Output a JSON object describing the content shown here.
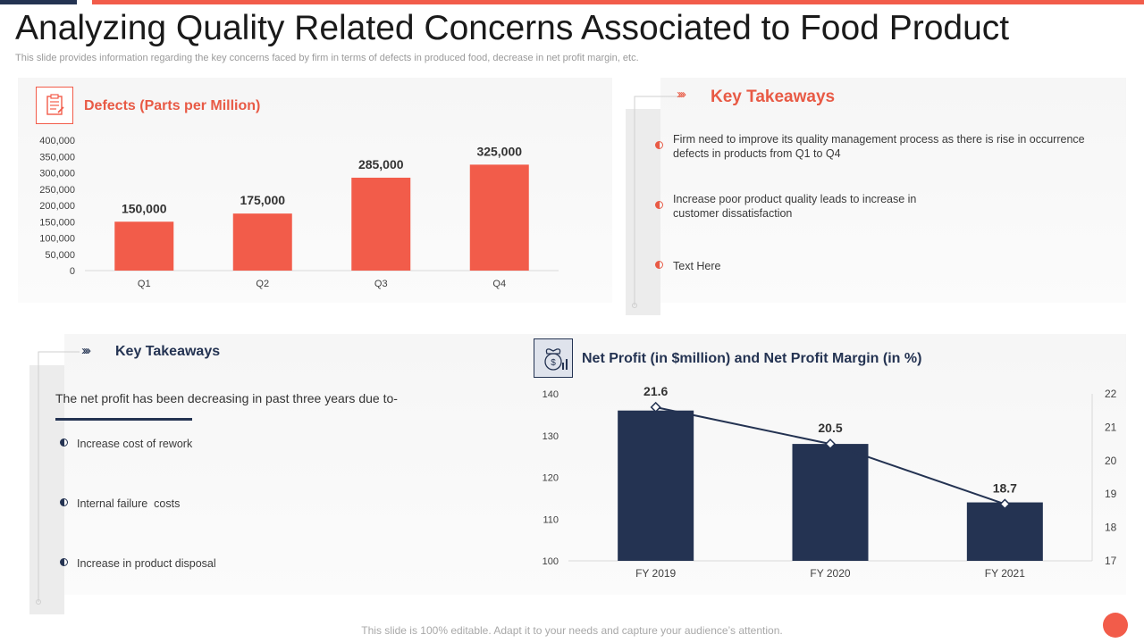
{
  "title": "Analyzing Quality Related Concerns Associated to Food Product",
  "subtitle": "This slide provides information regarding the key concerns faced by firm in terms of defects in produced food, decrease in net profit margin, etc.",
  "defects_section": {
    "title": "Defects (Parts per Million)",
    "icon": "clipboard-checklist-icon"
  },
  "key_takeaways_top": {
    "title": "Key Takeaways",
    "items": [
      "Firm need to improve  its quality management  process as there is rise in occurrence defects in products from Q1 to Q4",
      "Increase poor  product quality leads to increase in customer dissatisfaction",
      "Text Here"
    ]
  },
  "key_takeaways_bottom": {
    "title": "Key Takeaways",
    "intro": "The net profit has been decreasing in past three years due to-",
    "items": [
      "Increase cost of rework",
      "Internal failure  costs",
      "Increase in product disposal"
    ]
  },
  "profit_section": {
    "title": "Net Profit (in $million) and Net Profit Margin (in %)",
    "icon": "money-bag-growth-icon"
  },
  "footer": "This slide is 100% editable. Adapt it to your needs and capture your audience’s attention.",
  "colors": {
    "accent_red": "#f25c4a",
    "navy": "#243352"
  },
  "chart_data": [
    {
      "type": "bar",
      "title": "Defects (Parts per Million)",
      "categories": [
        "Q1",
        "Q2",
        "Q3",
        "Q4"
      ],
      "values": [
        150000,
        175000,
        285000,
        325000
      ],
      "value_labels": [
        "150,000",
        "175,000",
        "285,000",
        "325,000"
      ],
      "yticks": [
        "0",
        "50,000",
        "100,000",
        "150,000",
        "200,000",
        "250,000",
        "300,000",
        "350,000",
        "400,000"
      ],
      "ylim": [
        0,
        400000
      ],
      "color": "#f25c4a"
    },
    {
      "type": "bar+line",
      "title": "Net Profit (in $million) and Net Profit Margin (in %)",
      "categories": [
        "FY 2019",
        "FY 2020",
        "FY 2021"
      ],
      "bars": {
        "name": "Net Profit",
        "values": [
          136,
          128,
          114
        ],
        "ylim": [
          100,
          140
        ],
        "yticks": [
          "100",
          "110",
          "120",
          "130",
          "140"
        ]
      },
      "line": {
        "name": "Net Profit Margin",
        "values": [
          21.6,
          20.5,
          18.7
        ],
        "labels": [
          "21.6",
          "20.5",
          "18.7"
        ],
        "ylim": [
          17,
          22
        ],
        "yticks": [
          "17",
          "18",
          "19",
          "20",
          "21",
          "22"
        ]
      },
      "color": "#243352"
    }
  ]
}
